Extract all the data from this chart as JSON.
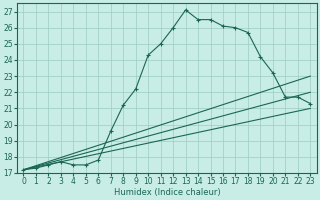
{
  "title": "",
  "xlabel": "Humidex (Indice chaleur)",
  "bg_color": "#c8ece6",
  "grid_color": "#9dccc4",
  "line_color": "#1a6655",
  "xlim": [
    -0.5,
    23.5
  ],
  "ylim": [
    17,
    27.5
  ],
  "xticks": [
    0,
    1,
    2,
    3,
    4,
    5,
    6,
    7,
    8,
    9,
    10,
    11,
    12,
    13,
    14,
    15,
    16,
    17,
    18,
    19,
    20,
    21,
    22,
    23
  ],
  "yticks": [
    17,
    18,
    19,
    20,
    21,
    22,
    23,
    24,
    25,
    26,
    27
  ],
  "main_line_x": [
    0,
    1,
    2,
    3,
    4,
    5,
    6,
    7,
    8,
    9,
    10,
    11,
    12,
    13,
    14,
    15,
    16,
    17,
    18,
    19,
    20,
    21,
    22,
    23
  ],
  "main_line_y": [
    17.2,
    17.3,
    17.5,
    17.7,
    17.5,
    17.5,
    17.8,
    19.6,
    21.2,
    22.2,
    24.3,
    25.0,
    26.0,
    27.1,
    26.5,
    26.5,
    26.1,
    26.0,
    25.7,
    24.2,
    23.2,
    21.7,
    21.7,
    21.3
  ],
  "line2_x": [
    0,
    23
  ],
  "line2_y": [
    17.2,
    21.0
  ],
  "line3_x": [
    0,
    23
  ],
  "line3_y": [
    17.2,
    22.0
  ],
  "line4_x": [
    0,
    23
  ],
  "line4_y": [
    17.2,
    23.0
  ],
  "xlabel_fontsize": 6,
  "tick_fontsize": 5.5
}
